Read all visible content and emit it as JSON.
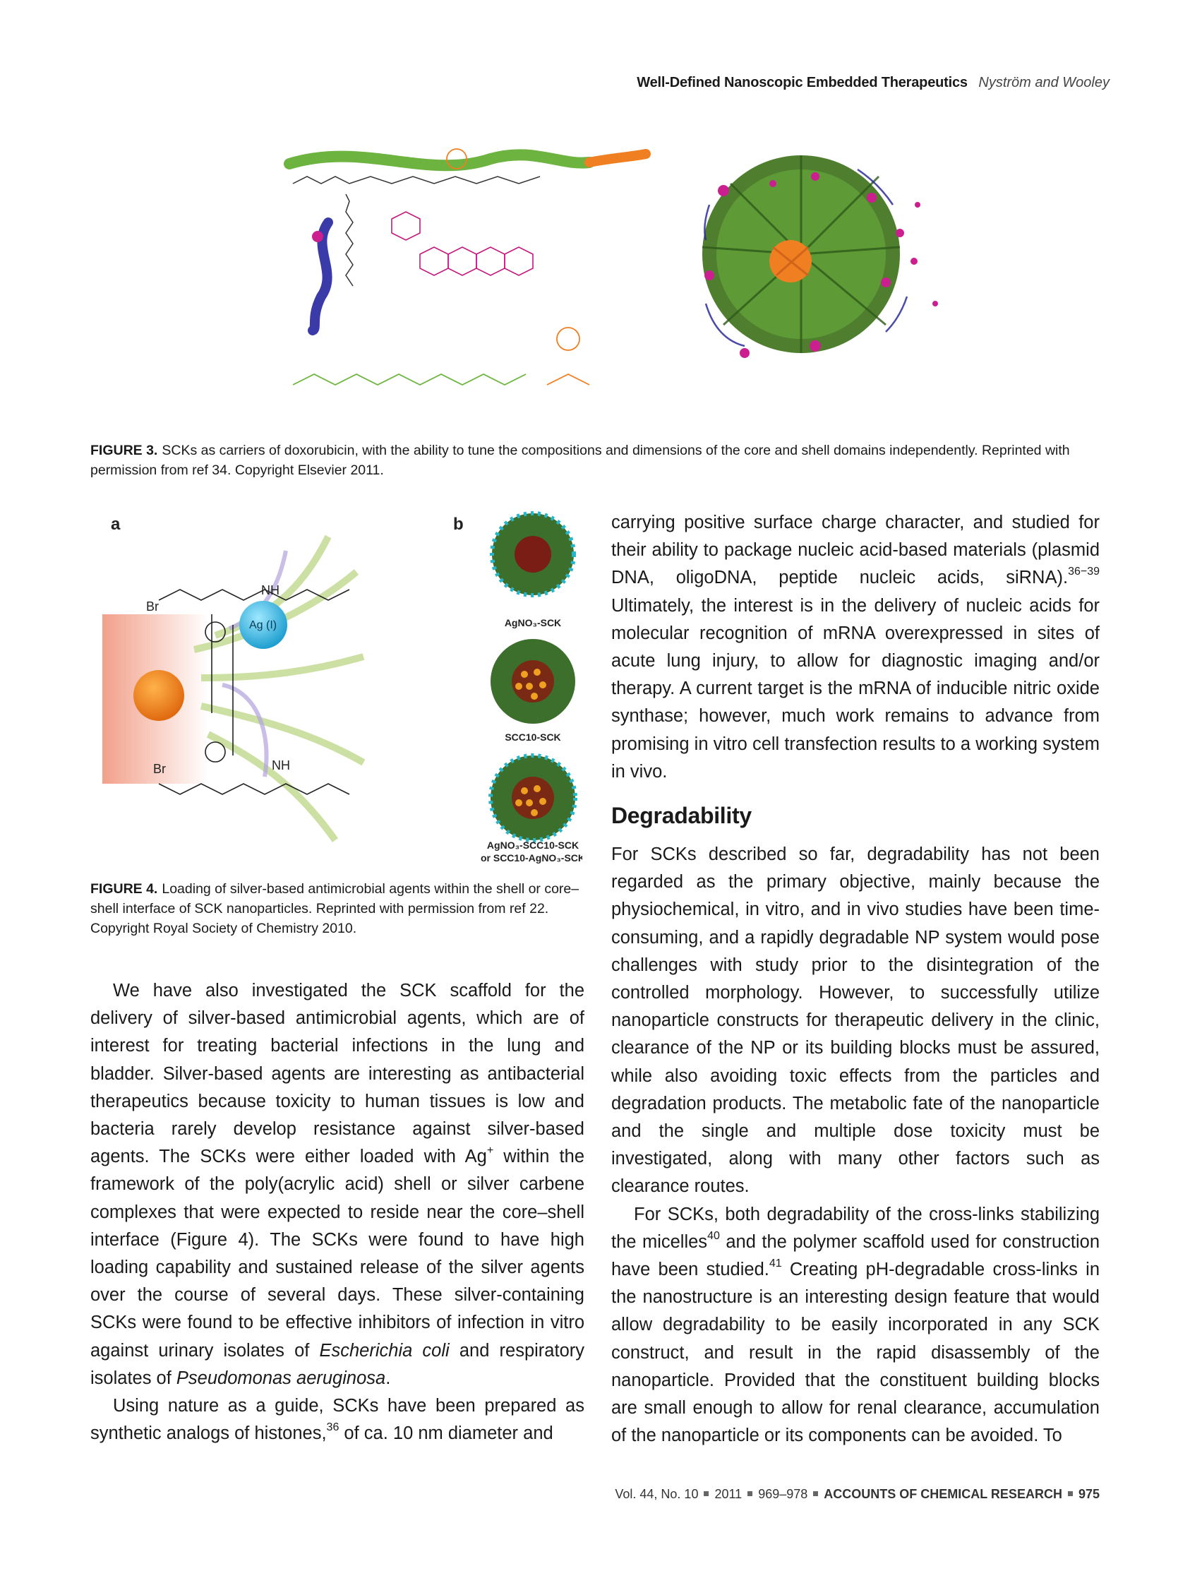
{
  "header": {
    "title": "Well-Defined Nanoscopic Embedded Therapeutics",
    "authors": "Nyström and Wooley"
  },
  "figure3": {
    "label": "FIGURE 3.",
    "caption": "SCKs as carriers of doxorubicin, with the ability to tune the compositions and dimensions of the core and shell domains independently. Reprinted with permission from ref 34. Copyright Elsevier 2011.",
    "colors": {
      "green": "#6cb33f",
      "orange": "#f07f22",
      "magenta": "#cc1f8f",
      "blue": "#3a3aa8",
      "pink_chem": "#c2187d"
    }
  },
  "figure4": {
    "label": "FIGURE 4.",
    "caption": "Loading of silver-based antimicrobial agents within the shell or core–shell interface of SCK nanoparticles. Reprinted with permission from ref 22. Copyright Royal Society of Chemistry 2010.",
    "panel_a": "a",
    "panel_b": "b",
    "ag_label": "Ag (I)",
    "br_label": "Br",
    "nh_label": "NH",
    "np_labels": [
      "AgNO₃-SCK",
      "SCC10-SCK",
      "AgNO₃-SCC10-SCK",
      "or SCC10-AgNO₃-SCK"
    ]
  },
  "left_column": {
    "p1_parts": [
      "We have also investigated the SCK scaffold for the delivery of silver-based antimicrobial agents, which are of interest for treating bacterial infections in the lung and bladder. Silver-based agents are interesting as antibacterial therapeutics because toxicity to human tissues is low and bacteria rarely develop resistance against silver-based agents. The SCKs were either loaded with Ag",
      "+",
      " within the framework of the poly(acrylic acid) shell or silver carbene complexes that were expected to reside near the core–shell interface (Figure 4). The SCKs were found to have high loading capability and sustained release of the silver agents over the course of several days. These silver-containing SCKs were found to be effective inhibitors of infection in vitro against urinary isolates of ",
      "Escherichia coli",
      " and respiratory isolates of ",
      "Pseudomonas aeruginosa",
      "."
    ],
    "p2_parts": [
      "Using nature as a guide, SCKs have been prepared as synthetic analogs of histones,",
      "36",
      " of ca. 10 nm diameter and"
    ]
  },
  "right_column": {
    "p1_parts": [
      "carrying positive surface charge character, and studied for their ability to package nucleic acid-based materials (plasmid DNA, oligoDNA, peptide nucleic acids, siRNA).",
      "36−39",
      " Ultimately, the interest is in the delivery of nucleic acids for molecular recognition of mRNA overexpressed in sites of acute lung injury, to allow for diagnostic imaging and/or therapy. A current target is the mRNA of inducible nitric oxide synthase; however, much work remains to advance from promising in vitro cell transfection results to a working system in vivo."
    ],
    "section_title": "Degradability",
    "p2": "For SCKs described so far, degradability has not been regarded as the primary objective, mainly because the physiochemical, in vitro, and in vivo studies have been time-consuming, and a rapidly degradable NP system would pose challenges with study prior to the disintegration of the controlled morphology. However, to successfully utilize nanoparticle constructs for therapeutic delivery in the clinic, clearance of the NP or its building blocks must be assured, while also avoiding toxic effects from the particles and degradation products. The metabolic fate of the nanoparticle and the single and multiple dose toxicity must be investigated, along with many other factors such as clearance routes.",
    "p3_parts": [
      "For SCKs, both degradability of the cross-links stabilizing the micelles",
      "40",
      " and the polymer scaffold used for construction have been studied.",
      "41",
      " Creating pH-degradable cross-links in the nanostructure is an interesting design feature that would allow degradability to be easily incorporated in any SCK construct, and result in the rapid disassembly of the nanoparticle. Provided that the constituent building blocks are small enough to allow for renal clearance, accumulation of the nanoparticle or its components can be avoided. To"
    ]
  },
  "footer": {
    "volume": "Vol. 44, No. 10",
    "year": "2011",
    "pages": "969–978",
    "journal": "ACCOUNTS OF CHEMICAL RESEARCH",
    "page_number": "975"
  }
}
